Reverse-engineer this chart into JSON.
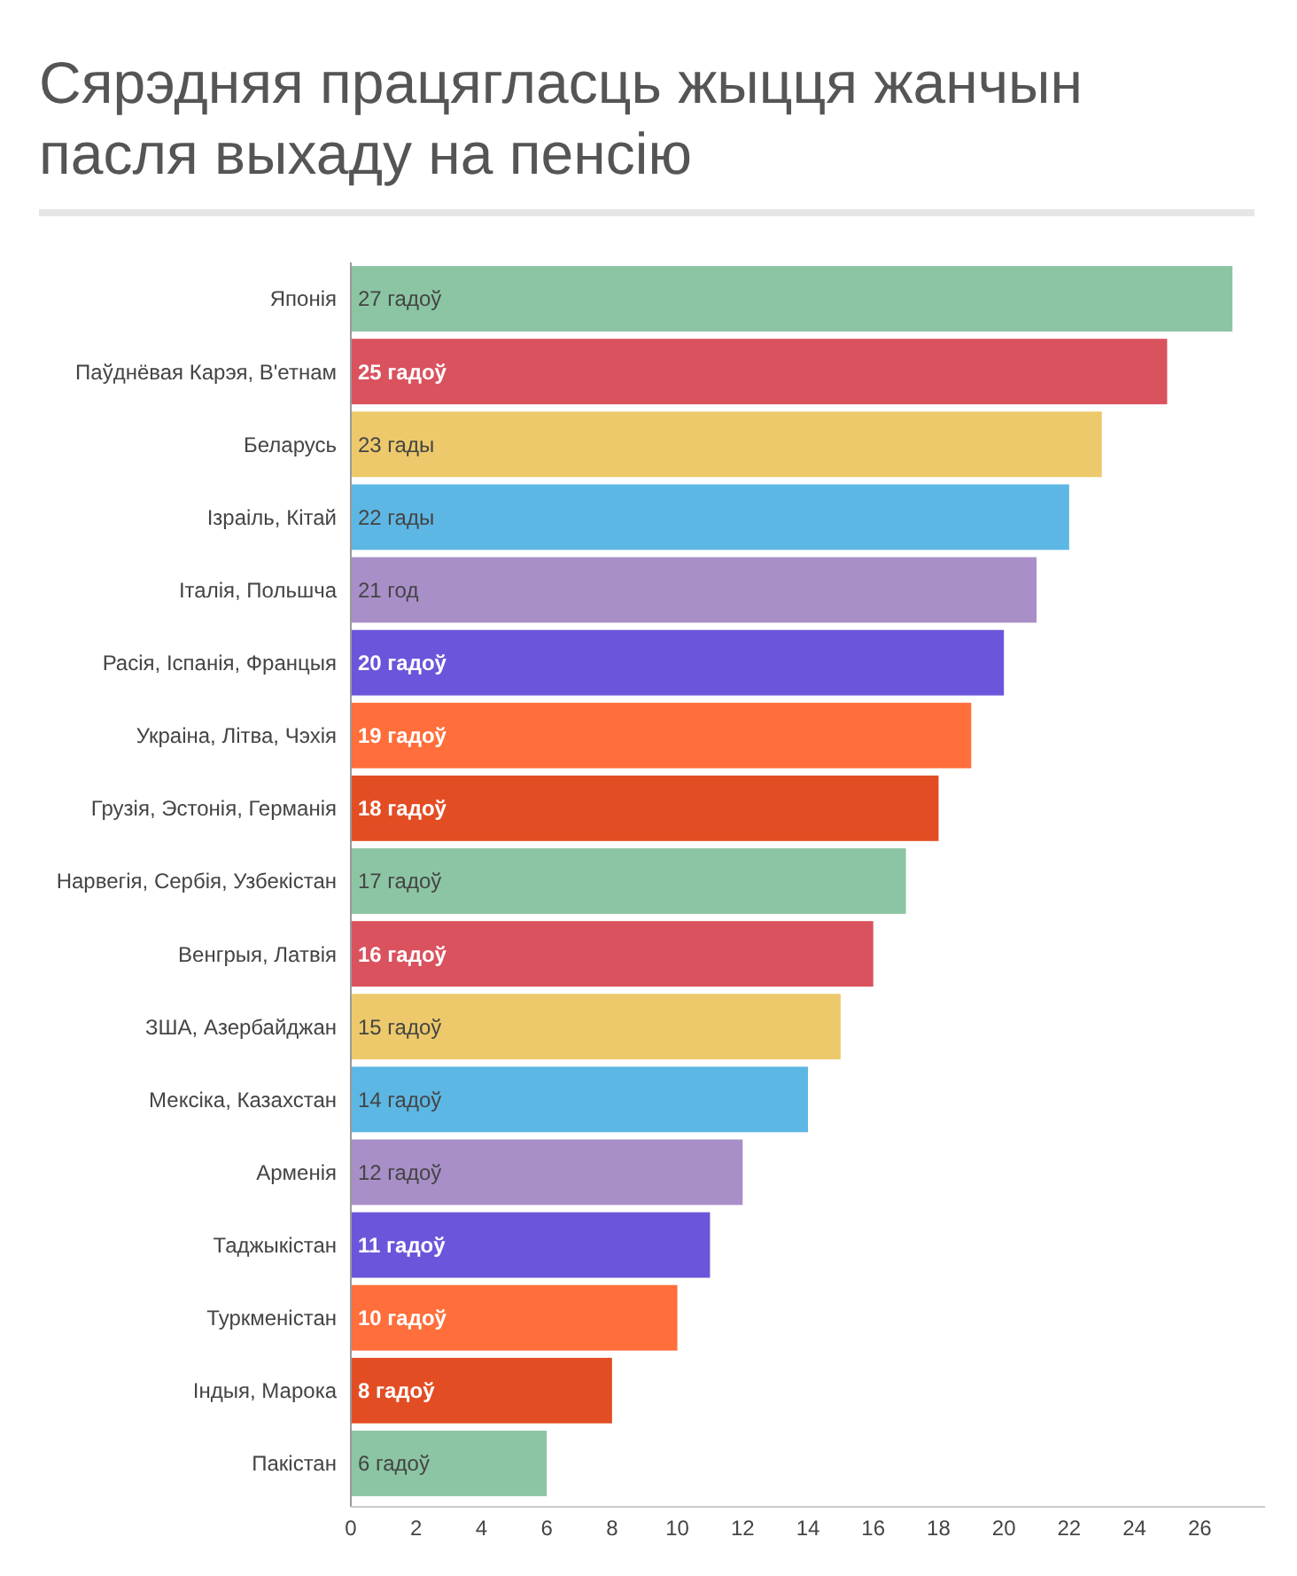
{
  "chart_data": {
    "type": "bar",
    "orientation": "horizontal",
    "title": "Сярэдняя працягласць жыцця жанчын пасля выхаду на пенсію",
    "categories": [
      "Японія",
      "Паўднёвая Карэя, В'етнам",
      "Беларусь",
      "Ізраіль, Кітай",
      "Італія, Польшча",
      "Расія, Іспанія, Францыя",
      "Украіна, Літва, Чэхія",
      "Грузія, Эстонія, Германія",
      "Нарвегія, Сербія, Узбекістан",
      "Венгрыя, Латвія",
      "ЗША, Азербайджан",
      "Мексіка, Казахстан",
      "Арменія",
      "Таджыкістан",
      "Туркменістан",
      "Індыя, Марока",
      "Пакістан"
    ],
    "values": [
      27,
      25,
      23,
      22,
      21,
      20,
      19,
      18,
      17,
      16,
      15,
      14,
      12,
      11,
      10,
      8,
      6
    ],
    "value_labels": [
      "27 гадоў",
      "25 гадоў",
      "23 гады",
      "22 гады",
      "21 год",
      "20 гадоў",
      "19 гадоў",
      "18 гадоў",
      "17 гадоў",
      "16 гадоў",
      "15 гадоў",
      "14 гадоў",
      "12 гадоў",
      "11 гадоў",
      "10 гадоў",
      "8 гадоў",
      "6 гадоў"
    ],
    "colors": [
      "#8cc5a3",
      "#d9525e",
      "#edc96b",
      "#5db7e4",
      "#a98fc8",
      "#6b55da",
      "#ff6e3b",
      "#e34d23",
      "#8cc5a3",
      "#d9525e",
      "#edc96b",
      "#5db7e4",
      "#a98fc8",
      "#6b55da",
      "#ff6e3b",
      "#e34d23",
      "#8cc5a3"
    ],
    "xlim": [
      0,
      28
    ],
    "xticks": [
      0,
      2,
      4,
      6,
      8,
      10,
      12,
      14,
      16,
      18,
      20,
      22,
      24,
      26
    ],
    "grid": false
  }
}
